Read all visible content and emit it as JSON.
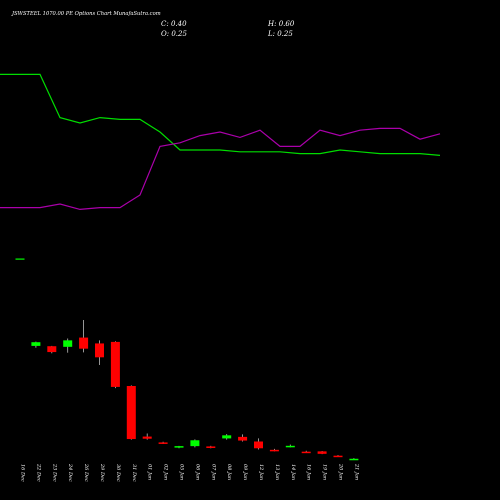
{
  "header": {
    "title": "JSWSTEEL 1070.00 PE Options Chart MunafaSutra.com",
    "open": "O: 0.25",
    "high": "H: 0.60",
    "close": "C: 0.40",
    "low": "L: 0.25"
  },
  "colors": {
    "background": "#000000",
    "up": "#00ff00",
    "down": "#ff0000",
    "line_green": "#00dd00",
    "line_purple": "#aa00aa",
    "text": "#ffffff"
  },
  "chart_data": {
    "type": "candlestick",
    "categories": [
      "16 Dec",
      "22 Dec",
      "23 Dec",
      "24 Dec",
      "26 Dec",
      "29 Dec",
      "30 Dec",
      "31 Dec",
      "01 Jan",
      "02 Jan",
      "05 Jan",
      "06 Jan",
      "07 Jan",
      "08 Jan",
      "09 Jan",
      "12 Jan",
      "13 Jan",
      "14 Jan",
      "16 Jan",
      "19 Jan",
      "20 Jan",
      "21 Jan"
    ],
    "ohlc": [
      [
        40.0,
        40.0,
        40.0,
        40.0
      ],
      [
        37.0,
        38.4,
        36.4,
        38.2
      ],
      [
        36.9,
        37.0,
        34.6,
        35.0
      ],
      [
        36.7,
        39.4,
        34.8,
        38.8
      ],
      [
        39.7,
        45.4,
        34.9,
        36.1
      ],
      [
        37.8,
        38.8,
        30.8,
        33.3
      ],
      [
        38.3,
        38.5,
        23.3,
        23.7
      ],
      [
        24.0,
        24.2,
        6.6,
        6.8
      ],
      [
        7.6,
        8.6,
        6.6,
        6.9
      ],
      [
        5.7,
        5.9,
        5.2,
        5.3
      ],
      [
        4.2,
        4.6,
        3.8,
        4.5
      ],
      [
        4.5,
        6.7,
        4.1,
        6.4
      ],
      [
        4.4,
        4.6,
        3.8,
        3.9
      ],
      [
        7.0,
        8.4,
        6.6,
        8.0
      ],
      [
        7.5,
        8.3,
        6.0,
        6.3
      ],
      [
        6.0,
        7.0,
        3.4,
        3.8
      ],
      [
        3.3,
        3.6,
        2.8,
        3.0
      ],
      [
        4.4,
        5.0,
        4.1,
        4.6
      ],
      [
        2.7,
        3.0,
        2.4,
        2.5
      ],
      [
        2.8,
        2.9,
        1.9,
        2.0
      ],
      [
        1.4,
        1.6,
        1.1,
        1.2
      ],
      [
        0.25,
        0.6,
        0.25,
        0.4
      ]
    ],
    "lines": [
      {
        "color": "#00dd00",
        "values": [
          92,
          92,
          68,
          65,
          68,
          67,
          67,
          60,
          50,
          50,
          50,
          49,
          49,
          49,
          48,
          48,
          50,
          49,
          48,
          48,
          48,
          47
        ]
      },
      {
        "color": "#aa00aa",
        "values": [
          18,
          18,
          20,
          17,
          18,
          18,
          25,
          52,
          54,
          58,
          60,
          57,
          61,
          52,
          52,
          61,
          58,
          61,
          62,
          62,
          56,
          59
        ]
      }
    ],
    "ylim": [
      0,
      100
    ]
  }
}
